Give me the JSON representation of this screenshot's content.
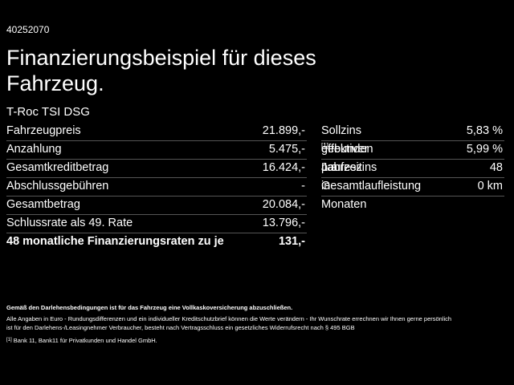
{
  "header": {
    "id": "40252070",
    "title_lines": [
      "Finanzierungsbeispiel für dieses",
      "Fahrzeug."
    ],
    "model": "T-Roc TSI DSG"
  },
  "left_table": {
    "rows": [
      [
        "Fahrzeugpreis",
        "21.899,-"
      ],
      [
        "Anzahlung",
        "5.475,-"
      ],
      [
        "Gesamtkreditbetrag",
        "16.424,-"
      ],
      [
        "Abschlussgebühren",
        "-"
      ],
      [
        "Gesamtbetrag",
        "20.084,-"
      ],
      [
        "Schlussrate als 49. Rate",
        "13.796,-"
      ],
      [
        "48 monatliche Finanzierungsraten zu je",
        "131,-"
      ]
    ]
  },
  "right_table": {
    "rows": [
      {
        "label": "Sollzins gebunden p.a.",
        "value": "5,83 %"
      },
      {
        "label": "effektiver Jahreszins",
        "note": "[1]",
        "value": "5,99 %"
      },
      {
        "label": "Laufzeit in Monaten",
        "value": "48"
      },
      {
        "label": "Gesamtlaufleistung",
        "value": "0 km"
      }
    ]
  },
  "footer": {
    "insurance": "Gemäß den Darlehensbedingungen ist für das Fahrzeug eine Vollkaskoversicherung abzuschließen.",
    "disclaimer_lines": [
      "Alle Angaben in Euro - Rundungsdifferenzen und ein individueller Kreditschutzbrief können die Werte verändern - Ihr Wunschrate errechnen wir Ihnen gerne persönlich",
      "ist für den Darlehens-/Leasingnehmer Verbraucher, besteht nach Vertragsschluss ein gesetzliches Widerrufsrecht nach § 495 BGB"
    ],
    "note_marker": "[1]",
    "note_text": "Bank 11, Bank11 für Privatkunden und Handel GmbH."
  }
}
